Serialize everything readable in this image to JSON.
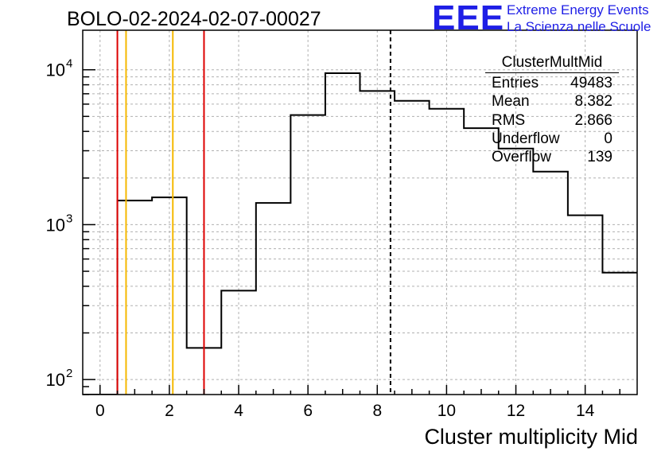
{
  "title": "BOLO-02-2024-02-07-00027",
  "logo": {
    "mark": "EEE",
    "line1": "Extreme Energy Events",
    "line2": "La Scienza nelle Scuole"
  },
  "stats": {
    "name": "ClusterMultMid",
    "rows": [
      {
        "label": "Entries",
        "value": "49483"
      },
      {
        "label": "Mean",
        "value": "8.382"
      },
      {
        "label": "RMS",
        "value": "2.866"
      },
      {
        "label": "Underflow",
        "value": "0"
      },
      {
        "label": "Overflow",
        "value": "139"
      }
    ]
  },
  "chart_data": {
    "type": "histogram",
    "title": "BOLO-02-2024-02-07-00027",
    "xlabel": "Cluster multiplicity Mid",
    "ylabel": "",
    "xlim": [
      -0.5,
      15.5
    ],
    "ylim": [
      80,
      18000
    ],
    "yscale": "log",
    "grid": true,
    "x_ticks": [
      "0",
      "2",
      "4",
      "6",
      "8",
      "10",
      "12",
      "14"
    ],
    "y_ticks": [
      {
        "base": "10",
        "exp": "2",
        "value": 100
      },
      {
        "base": "10",
        "exp": "3",
        "value": 1000
      },
      {
        "base": "10",
        "exp": "4",
        "value": 10000
      }
    ],
    "bin_width": 1,
    "bin_centers": [
      0,
      1,
      2,
      3,
      4,
      5,
      6,
      7,
      8,
      9,
      10,
      11,
      12,
      13,
      14,
      15
    ],
    "values": [
      0,
      1430,
      1500,
      160,
      375,
      1380,
      5100,
      9500,
      7300,
      6300,
      5600,
      4200,
      3100,
      2200,
      1150,
      490
    ],
    "vertical_lines": [
      {
        "x": 0.5,
        "color": "#dd0000",
        "style": "solid"
      },
      {
        "x": 0.75,
        "color": "#f5b800",
        "style": "solid"
      },
      {
        "x": 2.1,
        "color": "#f5b800",
        "style": "solid"
      },
      {
        "x": 3.0,
        "color": "#dd0000",
        "style": "solid"
      },
      {
        "x": 8.382,
        "color": "#000000",
        "style": "dashed"
      }
    ],
    "stats_box": "top-right"
  }
}
